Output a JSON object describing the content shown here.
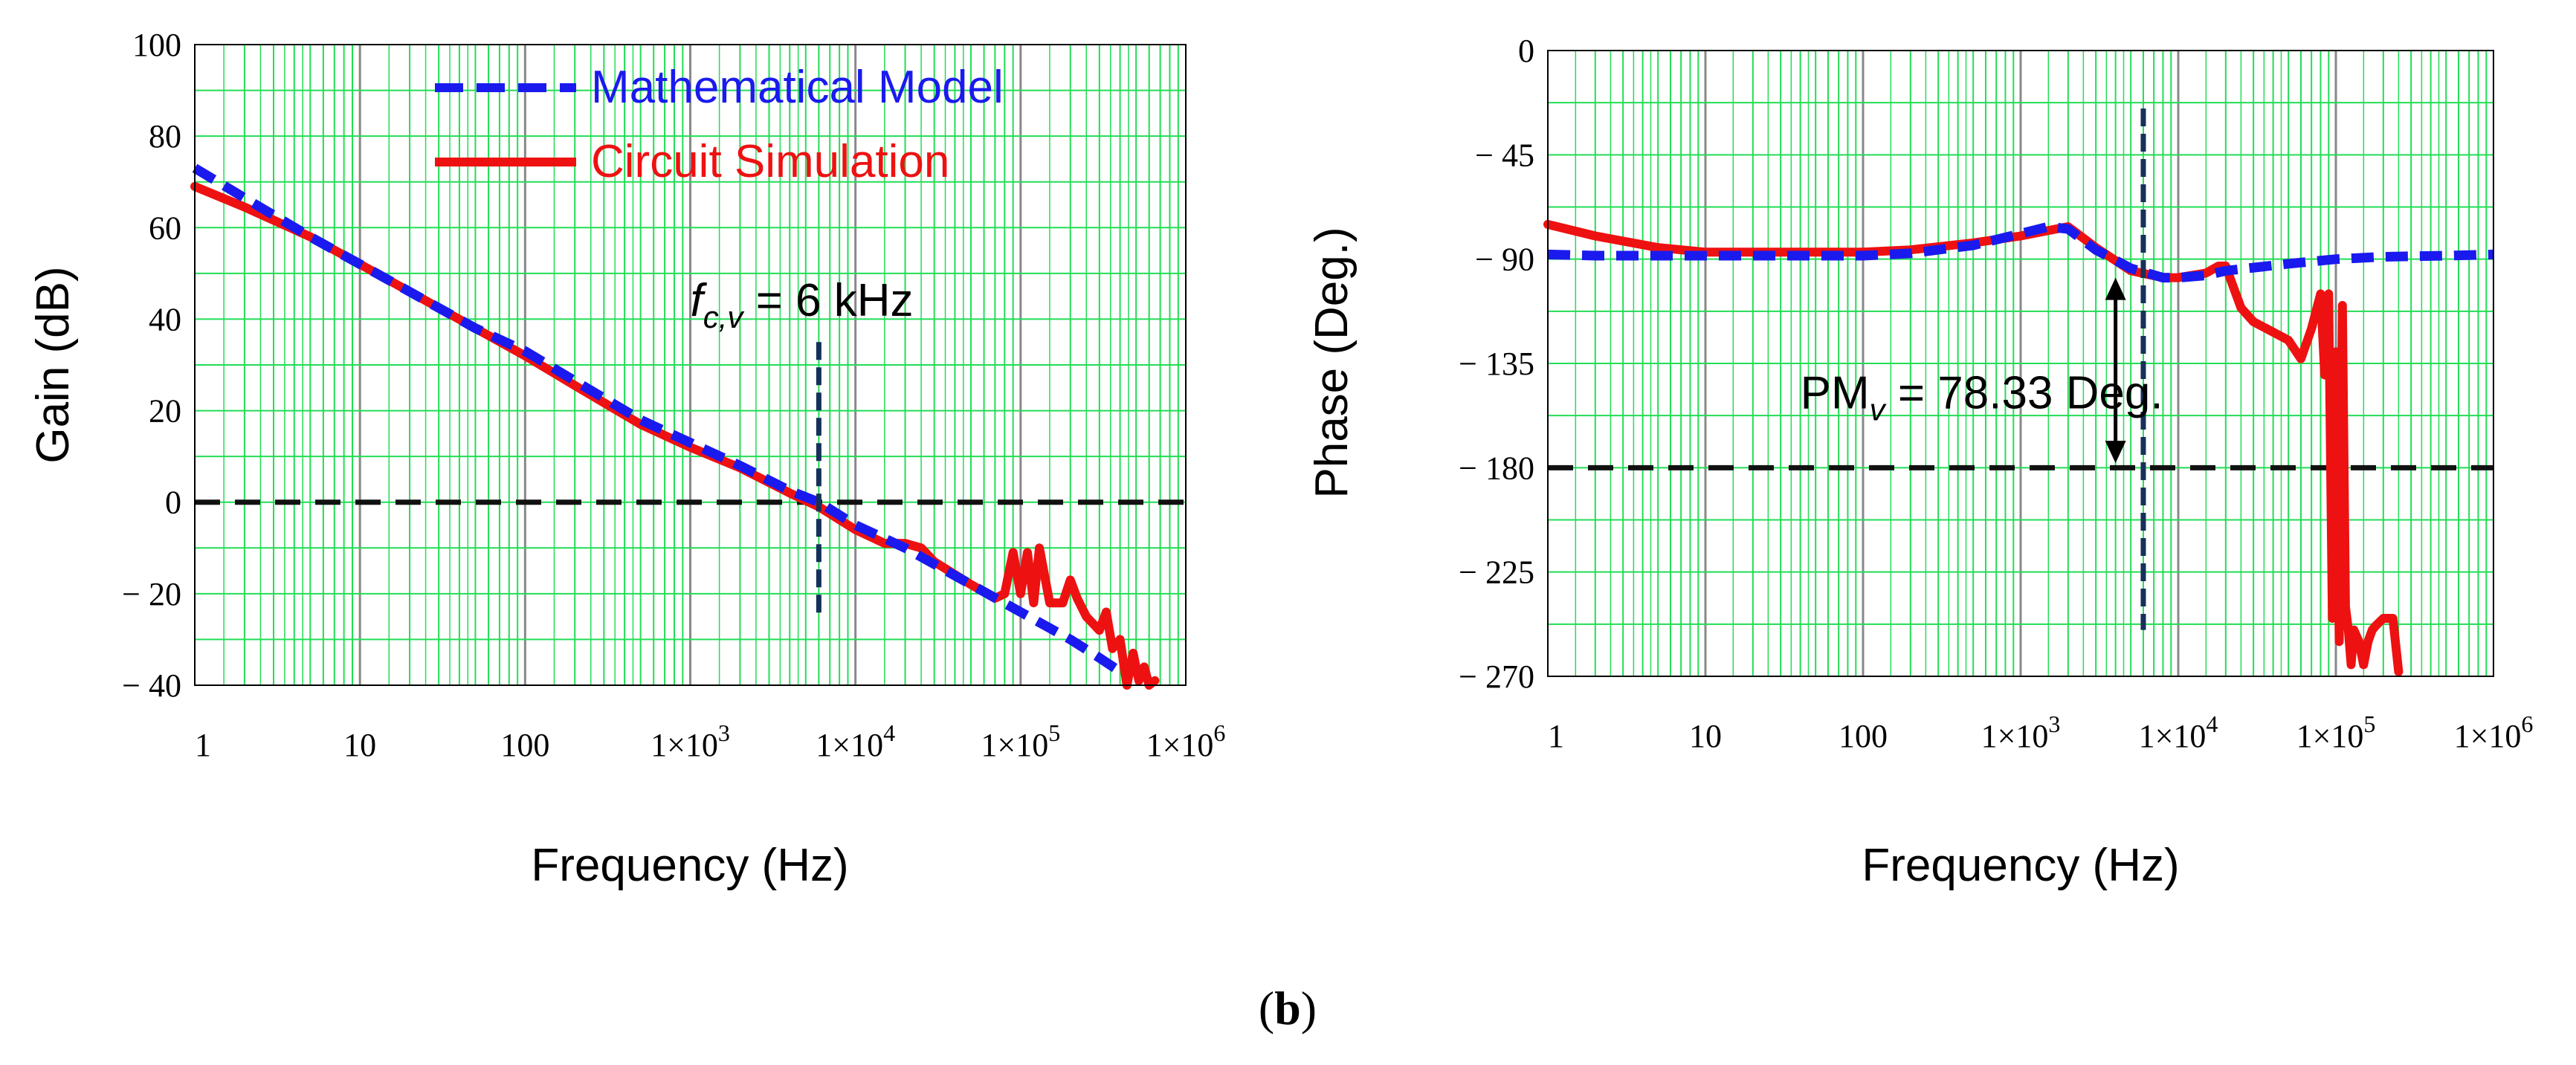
{
  "figure": {
    "caption_open": "(",
    "caption_letter": "b",
    "caption_close": ")"
  },
  "colors": {
    "model": "#1a1aee",
    "simulation": "#ee1111",
    "grid": "#22dd55",
    "decade": "#888888",
    "reference": "#111111",
    "marker": "#16305a"
  },
  "chart_data": [
    {
      "type": "line",
      "x_scale": "log",
      "xlabel": "Frequency (Hz)",
      "ylabel": "Gain (dB)",
      "xlim": [
        1,
        1000000
      ],
      "ylim": [
        -40,
        100
      ],
      "x_tick_labels": [
        {
          "base": "1",
          "exp": ""
        },
        {
          "base": "10",
          "exp": ""
        },
        {
          "base": "100",
          "exp": ""
        },
        {
          "base": "1×10",
          "exp": "3"
        },
        {
          "base": "1×10",
          "exp": "4"
        },
        {
          "base": "1×10",
          "exp": "5"
        },
        {
          "base": "1×10",
          "exp": "6"
        }
      ],
      "y_ticks": [
        100,
        80,
        60,
        40,
        20,
        0,
        -20,
        -40
      ],
      "y_tick_labels": [
        "100",
        "80",
        "60",
        "40",
        "20",
        "0",
        "− 20",
        "− 40"
      ],
      "legend": {
        "position": "top-right",
        "entries": [
          "Mathematical Model",
          "Circuit Simulation"
        ]
      },
      "reference_line": {
        "y": 0
      },
      "marker_line": {
        "x": 6000,
        "y_range": [
          -25,
          35
        ]
      },
      "annotation": {
        "main": "f",
        "sub": "c,v",
        "rest": " = 6 kHz",
        "x": 1000,
        "y": 44
      },
      "series": [
        {
          "name": "Mathematical Model",
          "x": [
            1,
            2,
            5,
            10,
            20,
            50,
            100,
            200,
            500,
            1000,
            2000,
            4000,
            6000,
            10000,
            20000,
            50000,
            100000,
            200000,
            300000,
            400000
          ],
          "y": [
            73,
            66.5,
            58,
            52,
            46,
            38,
            33,
            26.5,
            18,
            13,
            8,
            2.5,
            0,
            -5,
            -10,
            -18,
            -24,
            -30,
            -34,
            -37
          ]
        },
        {
          "name": "Circuit Simulation",
          "x": [
            1,
            2,
            5,
            10,
            20,
            50,
            100,
            200,
            500,
            1000,
            2000,
            4000,
            6000,
            10000,
            15000,
            20000,
            25000,
            30000,
            50000,
            70000,
            80000,
            90000,
            100000,
            110000,
            120000,
            130000,
            150000,
            180000,
            200000,
            220000,
            250000,
            300000,
            330000,
            360000,
            400000,
            440000,
            480000,
            520000,
            560000,
            600000,
            650000
          ],
          "y": [
            69,
            64.5,
            58,
            52,
            46,
            38,
            32,
            25.5,
            17,
            12,
            7.5,
            2,
            -1,
            -6,
            -9,
            -9,
            -10,
            -13,
            -18,
            -21,
            -20,
            -11,
            -20,
            -11,
            -22,
            -10,
            -22,
            -22,
            -17,
            -21,
            -25,
            -28,
            -24,
            -32,
            -30,
            -40,
            -33,
            -39,
            -36,
            -40,
            -39
          ]
        }
      ]
    },
    {
      "type": "line",
      "x_scale": "log",
      "xlabel": "Frequency (Hz)",
      "ylabel": "Phase (Deg.)",
      "xlim": [
        1,
        1000000
      ],
      "ylim": [
        -270,
        0
      ],
      "x_tick_labels": [
        {
          "base": "1",
          "exp": ""
        },
        {
          "base": "10",
          "exp": ""
        },
        {
          "base": "100",
          "exp": ""
        },
        {
          "base": "1×10",
          "exp": "3"
        },
        {
          "base": "1×10",
          "exp": "4"
        },
        {
          "base": "1×10",
          "exp": "5"
        },
        {
          "base": "1×10",
          "exp": "6"
        }
      ],
      "y_ticks": [
        0,
        -45,
        -90,
        -135,
        -180,
        -225,
        -270
      ],
      "y_tick_labels": [
        "0",
        "− 45",
        "− 90",
        "− 135",
        "− 180",
        "− 225",
        "− 270"
      ],
      "reference_line": {
        "y": -180
      },
      "marker_line": {
        "x": 6000,
        "y_range": [
          -250,
          -25
        ]
      },
      "arrow": {
        "x": 4000,
        "y_from": -98,
        "y_to": -178
      },
      "annotation": {
        "main": "PM",
        "sub": "v",
        "rest": " = 78.33 Deg.",
        "x": 40,
        "y": -148
      },
      "series": [
        {
          "name": "Mathematical Model",
          "x": [
            1,
            2,
            5,
            10,
            20,
            50,
            100,
            200,
            500,
            1000,
            1500,
            2000,
            3000,
            5000,
            8000,
            10000,
            15000,
            20000,
            50000,
            100000,
            200000,
            500000,
            1000000
          ],
          "y": [
            -88,
            -88.5,
            -88.5,
            -88.5,
            -88.5,
            -88.5,
            -88.5,
            -87.5,
            -84,
            -79,
            -76,
            -77,
            -86,
            -94,
            -98,
            -98,
            -97,
            -95,
            -92,
            -90,
            -89,
            -88.5,
            -88
          ]
        },
        {
          "name": "Circuit Simulation",
          "x": [
            1,
            2,
            5,
            10,
            20,
            50,
            100,
            200,
            500,
            1000,
            2000,
            3000,
            5000,
            8000,
            10000,
            15000,
            18000,
            20000,
            25000,
            30000,
            50000,
            60000,
            70000,
            80000,
            85000,
            90000,
            95000,
            100000,
            105000,
            110000,
            115000,
            120000,
            125000,
            130000,
            140000,
            150000,
            160000,
            170000,
            180000,
            200000,
            230000,
            250000
          ],
          "y": [
            -75,
            -80,
            -85,
            -87,
            -87,
            -87,
            -87,
            -86,
            -83,
            -80,
            -76,
            -85,
            -95,
            -98,
            -98,
            -96,
            -93,
            -93,
            -111,
            -117,
            -125,
            -133,
            -120,
            -105,
            -140,
            -105,
            -245,
            -130,
            -255,
            -110,
            -240,
            -250,
            -265,
            -250,
            -255,
            -265,
            -255,
            -250,
            -248,
            -245,
            -245,
            -268
          ]
        }
      ]
    }
  ]
}
